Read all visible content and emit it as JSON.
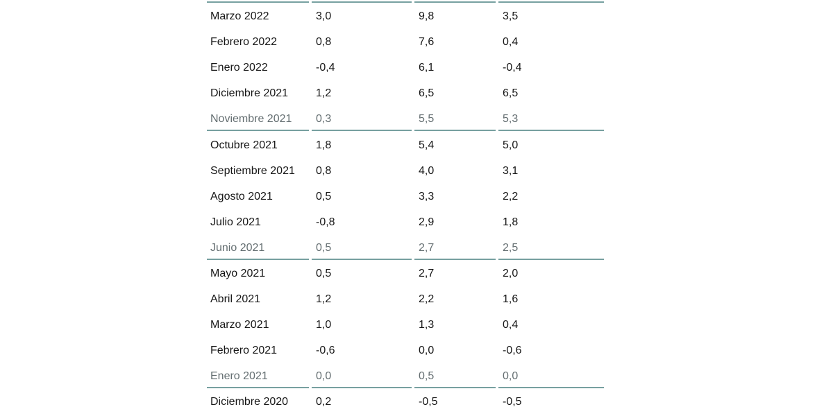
{
  "colors": {
    "background": "#ffffff",
    "separator": "#77a0a0",
    "text": "#171717",
    "muted_text": "#646e71"
  },
  "table": {
    "rows": [
      {
        "period": "Marzo 2022",
        "values": [
          "3,0",
          "9,8",
          "3,5"
        ],
        "muted": false
      },
      {
        "period": "Febrero 2022",
        "values": [
          "0,8",
          "7,6",
          "0,4"
        ],
        "muted": false
      },
      {
        "period": "Enero 2022",
        "values": [
          "-0,4",
          "6,1",
          "-0,4"
        ],
        "muted": false
      },
      {
        "period": "Diciembre 2021",
        "values": [
          "1,2",
          "6,5",
          "6,5"
        ],
        "muted": false
      },
      {
        "period": "Noviembre 2021",
        "values": [
          "0,3",
          "5,5",
          "5,3"
        ],
        "muted": true
      },
      {
        "period": "Octubre 2021",
        "values": [
          "1,8",
          "5,4",
          "5,0"
        ],
        "muted": false
      },
      {
        "period": "Septiembre 2021",
        "values": [
          "0,8",
          "4,0",
          "3,1"
        ],
        "muted": false
      },
      {
        "period": "Agosto 2021",
        "values": [
          "0,5",
          "3,3",
          "2,2"
        ],
        "muted": false
      },
      {
        "period": "Julio 2021",
        "values": [
          "-0,8",
          "2,9",
          "1,8"
        ],
        "muted": false
      },
      {
        "period": "Junio 2021",
        "values": [
          "0,5",
          "2,7",
          "2,5"
        ],
        "muted": true
      },
      {
        "period": "Mayo 2021",
        "values": [
          "0,5",
          "2,7",
          "2,0"
        ],
        "muted": false
      },
      {
        "period": "Abril 2021",
        "values": [
          "1,2",
          "2,2",
          "1,6"
        ],
        "muted": false
      },
      {
        "period": "Marzo 2021",
        "values": [
          "1,0",
          "1,3",
          "0,4"
        ],
        "muted": false
      },
      {
        "period": "Febrero 2021",
        "values": [
          "-0,6",
          "0,0",
          "-0,6"
        ],
        "muted": false
      },
      {
        "period": "Enero 2021",
        "values": [
          "0,0",
          "0,5",
          "0,0"
        ],
        "muted": true
      },
      {
        "period": "Diciembre 2020",
        "values": [
          "0,2",
          "-0,5",
          "-0,5"
        ],
        "muted": false
      }
    ]
  },
  "chart_data": {
    "type": "table",
    "number_format": "comma-decimal",
    "categories": [
      "Marzo 2022",
      "Febrero 2022",
      "Enero 2022",
      "Diciembre 2021",
      "Noviembre 2021",
      "Octubre 2021",
      "Septiembre 2021",
      "Agosto 2021",
      "Julio 2021",
      "Junio 2021",
      "Mayo 2021",
      "Abril 2021",
      "Marzo 2021",
      "Febrero 2021",
      "Enero 2021",
      "Diciembre 2020"
    ],
    "series": [
      {
        "name": "column-2",
        "values": [
          3.0,
          0.8,
          -0.4,
          1.2,
          0.3,
          1.8,
          0.8,
          0.5,
          -0.8,
          0.5,
          0.5,
          1.2,
          1.0,
          -0.6,
          0.0,
          0.2
        ]
      },
      {
        "name": "column-3",
        "values": [
          9.8,
          7.6,
          6.1,
          6.5,
          5.5,
          5.4,
          4.0,
          3.3,
          2.9,
          2.7,
          2.7,
          2.2,
          1.3,
          0.0,
          0.5,
          -0.5
        ]
      },
      {
        "name": "column-4",
        "values": [
          3.5,
          0.4,
          -0.4,
          6.5,
          5.3,
          5.0,
          3.1,
          2.2,
          1.8,
          2.5,
          2.0,
          1.6,
          0.4,
          -0.6,
          0.0,
          -0.5
        ]
      }
    ]
  }
}
